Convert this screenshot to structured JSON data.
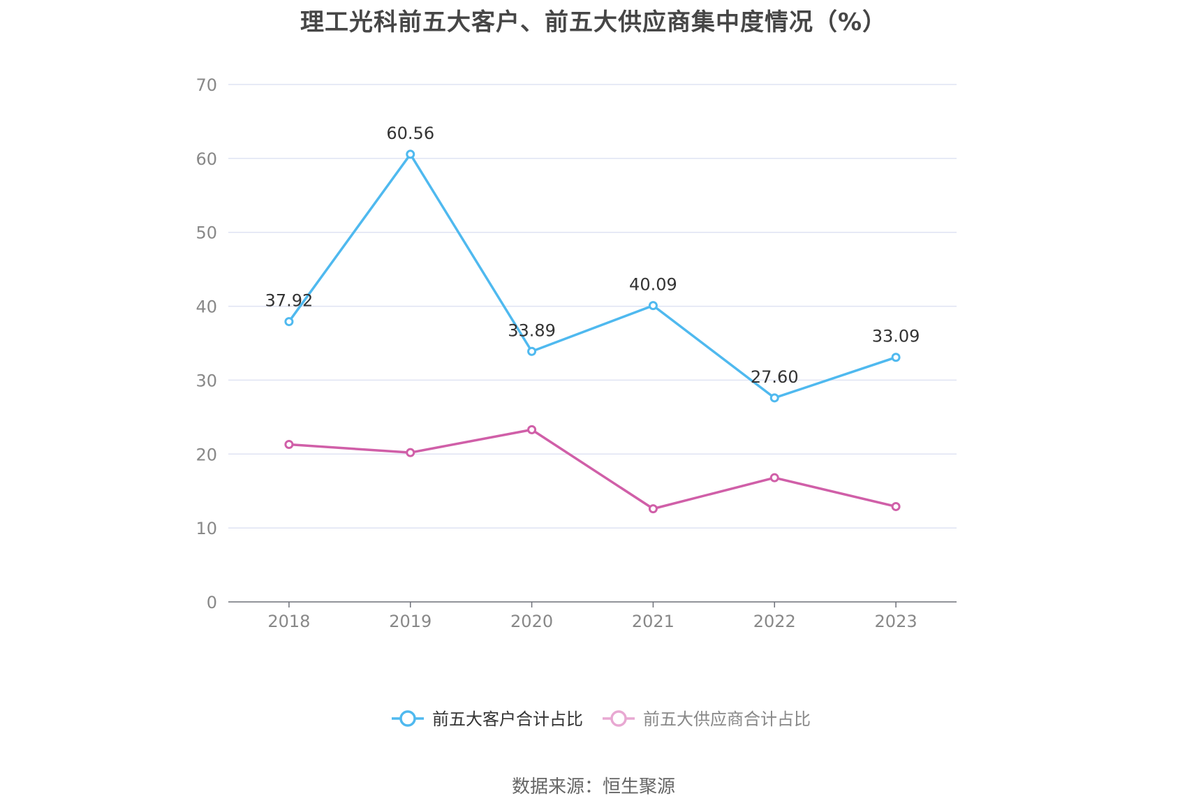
{
  "chart_data": {
    "type": "line",
    "title": "理工光科前五大客户、前五大供应商集中度情况（%）",
    "categories": [
      "2018",
      "2019",
      "2020",
      "2021",
      "2022",
      "2023"
    ],
    "ylim": [
      0,
      70
    ],
    "yticks": [
      0,
      10,
      20,
      30,
      40,
      50,
      60,
      70
    ],
    "grid": true,
    "legend_position": "bottom",
    "series": [
      {
        "name": "前五大客户合计占比",
        "color": "#4fb9ef",
        "values": [
          37.92,
          60.56,
          33.89,
          40.09,
          27.6,
          33.09
        ],
        "labels": [
          "37.92",
          "60.56",
          "33.89",
          "40.09",
          "27.60",
          "33.09"
        ],
        "show_labels": true
      },
      {
        "name": "前五大供应商合计占比",
        "color": "#d05fa8",
        "legend_color": "#e8a8d2",
        "values": [
          21.3,
          20.2,
          23.3,
          12.6,
          16.8,
          12.9
        ],
        "show_labels": false
      }
    ]
  },
  "source_text": "数据来源：恒生聚源"
}
